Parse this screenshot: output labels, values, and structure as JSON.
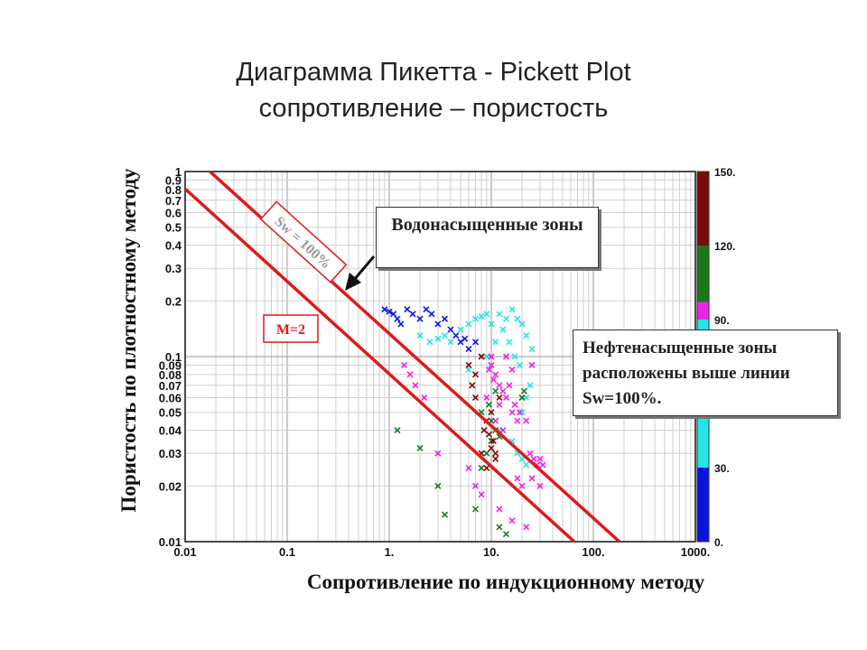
{
  "title_line1": "Диаграмма Пикетта - Pickett Plot",
  "title_line2": "сопротивление – пористость",
  "callout_water": "Водонасыщенные зоны",
  "callout_oil": "Нефтенасыщенные зоны расположены выше линии Sw=100%.",
  "chart_data": {
    "type": "scatter",
    "xlabel": "Сопротивление по индукционному методу",
    "ylabel": "Пористость по плотностному методу",
    "xscale": "log",
    "yscale": "log",
    "xlim": [
      0.01,
      1000
    ],
    "ylim": [
      0.01,
      1
    ],
    "x_tick_labels": [
      "0.01",
      "0.1",
      "1.",
      "10.",
      "100.",
      "1000."
    ],
    "x_tick_values": [
      0.01,
      0.1,
      1,
      10,
      100,
      1000
    ],
    "y_tick_labels": [
      "1",
      "0.9",
      "0.8",
      "0.7",
      "0.6",
      "0.5",
      "0.4",
      "0.3",
      "0.2",
      "0.1",
      "0.09",
      "0.08",
      "0.07",
      "0.06",
      "0.05",
      "0.04",
      "0.03",
      "0.02",
      "0.01"
    ],
    "y_tick_values": [
      1,
      0.9,
      0.8,
      0.7,
      0.6,
      0.5,
      0.4,
      0.3,
      0.2,
      0.1,
      0.09,
      0.08,
      0.07,
      0.06,
      0.05,
      0.04,
      0.03,
      0.02,
      0.01
    ],
    "grid": true,
    "colorbar": {
      "range": [
        0,
        150
      ],
      "tick_labels": [
        "150.",
        "120.",
        "90.",
        "30.",
        "0."
      ],
      "tick_values": [
        150,
        120,
        90,
        30,
        0
      ],
      "bands": [
        {
          "from": 0,
          "to": 30,
          "color": "#0a14e0"
        },
        {
          "from": 30,
          "to": 90,
          "color": "#22e6e6"
        },
        {
          "from": 90,
          "to": 97,
          "color": "#ee22ee"
        },
        {
          "from": 97,
          "to": 120,
          "color": "#1a7a1a"
        },
        {
          "from": 120,
          "to": 150,
          "color": "#7a0c0c"
        }
      ]
    },
    "lines": [
      {
        "label": "Sw = 100%",
        "color": "#dd1a1a",
        "x": [
          0.0175,
          180
        ],
        "y": [
          1,
          0.01
        ]
      },
      {
        "label": "M=2",
        "color": "#dd1a1a",
        "x": [
          0.0065,
          65
        ],
        "y": [
          1,
          0.01
        ]
      }
    ],
    "series": [
      {
        "color": "#0a14e0",
        "points": [
          [
            0.9,
            0.18
          ],
          [
            1.0,
            0.175
          ],
          [
            1.1,
            0.17
          ],
          [
            1.2,
            0.16
          ],
          [
            1.3,
            0.15
          ],
          [
            1.5,
            0.18
          ],
          [
            1.7,
            0.17
          ],
          [
            2,
            0.16
          ],
          [
            2.3,
            0.18
          ],
          [
            2.6,
            0.17
          ],
          [
            3,
            0.15
          ],
          [
            3.5,
            0.16
          ],
          [
            4,
            0.14
          ],
          [
            4.5,
            0.13
          ],
          [
            5,
            0.12
          ],
          [
            5.5,
            0.125
          ],
          [
            6,
            0.11
          ],
          [
            7,
            0.12
          ]
        ]
      },
      {
        "color": "#22e6e6",
        "points": [
          [
            2,
            0.13
          ],
          [
            2.5,
            0.12
          ],
          [
            3,
            0.125
          ],
          [
            3.5,
            0.13
          ],
          [
            4,
            0.12
          ],
          [
            5,
            0.14
          ],
          [
            6,
            0.15
          ],
          [
            7,
            0.16
          ],
          [
            8,
            0.165
          ],
          [
            9,
            0.17
          ],
          [
            10,
            0.15
          ],
          [
            12,
            0.17
          ],
          [
            14,
            0.16
          ],
          [
            16,
            0.18
          ],
          [
            18,
            0.16
          ],
          [
            20,
            0.15
          ],
          [
            22,
            0.13
          ],
          [
            25,
            0.11
          ],
          [
            25,
            0.09
          ],
          [
            24,
            0.07
          ],
          [
            22,
            0.06
          ],
          [
            20,
            0.05
          ],
          [
            6,
            0.085
          ],
          [
            18,
            0.03
          ],
          [
            20,
            0.028
          ],
          [
            22,
            0.026
          ],
          [
            16,
            0.035
          ],
          [
            12,
            0.04
          ],
          [
            9,
            0.1
          ],
          [
            11,
            0.12
          ],
          [
            13,
            0.14
          ],
          [
            15,
            0.12
          ],
          [
            17,
            0.1
          ],
          [
            19,
            0.09
          ]
        ]
      },
      {
        "color": "#ee22ee",
        "points": [
          [
            1.4,
            0.09
          ],
          [
            1.6,
            0.08
          ],
          [
            1.8,
            0.07
          ],
          [
            2.2,
            0.06
          ],
          [
            10,
            0.09
          ],
          [
            11,
            0.08
          ],
          [
            12,
            0.07
          ],
          [
            13,
            0.065
          ],
          [
            14,
            0.06
          ],
          [
            15,
            0.07
          ],
          [
            16,
            0.05
          ],
          [
            17,
            0.055
          ],
          [
            18,
            0.045
          ],
          [
            19,
            0.05
          ],
          [
            20,
            0.06
          ],
          [
            12,
            0.055
          ],
          [
            11,
            0.045
          ],
          [
            13,
            0.04
          ],
          [
            22,
            0.045
          ],
          [
            24,
            0.03
          ],
          [
            26,
            0.028
          ],
          [
            28,
            0.026
          ],
          [
            30,
            0.028
          ],
          [
            32,
            0.026
          ],
          [
            18,
            0.022
          ],
          [
            20,
            0.02
          ],
          [
            25,
            0.022
          ],
          [
            30,
            0.02
          ],
          [
            7,
            0.02
          ],
          [
            8,
            0.018
          ],
          [
            12,
            0.015
          ],
          [
            16,
            0.013
          ],
          [
            22,
            0.012
          ],
          [
            6,
            0.025
          ],
          [
            3,
            0.03
          ],
          [
            9,
            0.06
          ],
          [
            10,
            0.1
          ],
          [
            9.5,
            0.085
          ],
          [
            10.5,
            0.075
          ],
          [
            25,
            0.09
          ],
          [
            14,
            0.1
          ],
          [
            16,
            0.085
          ]
        ]
      },
      {
        "color": "#1a7a1a",
        "points": [
          [
            1.2,
            0.04
          ],
          [
            2,
            0.032
          ],
          [
            3,
            0.02
          ],
          [
            3.5,
            0.014
          ],
          [
            7,
            0.015
          ],
          [
            8,
            0.025
          ],
          [
            9,
            0.03
          ],
          [
            10,
            0.035
          ],
          [
            11,
            0.04
          ],
          [
            12,
            0.037
          ],
          [
            9.5,
            0.055
          ],
          [
            10,
            0.045
          ],
          [
            11,
            0.065
          ],
          [
            8,
            0.05
          ],
          [
            20,
            0.06
          ],
          [
            21,
            0.065
          ],
          [
            12,
            0.012
          ],
          [
            14,
            0.011
          ]
        ]
      },
      {
        "color": "#7a0c0c",
        "points": [
          [
            6,
            0.09
          ],
          [
            6.5,
            0.07
          ],
          [
            7,
            0.08
          ],
          [
            8,
            0.1
          ],
          [
            8.5,
            0.04
          ],
          [
            9,
            0.045
          ],
          [
            10,
            0.05
          ],
          [
            10.5,
            0.035
          ],
          [
            11,
            0.03
          ],
          [
            9,
            0.025
          ],
          [
            8,
            0.03
          ],
          [
            12,
            0.06
          ],
          [
            7,
            0.06
          ],
          [
            9.5,
            0.038
          ],
          [
            10,
            0.032
          ],
          [
            11,
            0.028
          ]
        ]
      }
    ]
  }
}
